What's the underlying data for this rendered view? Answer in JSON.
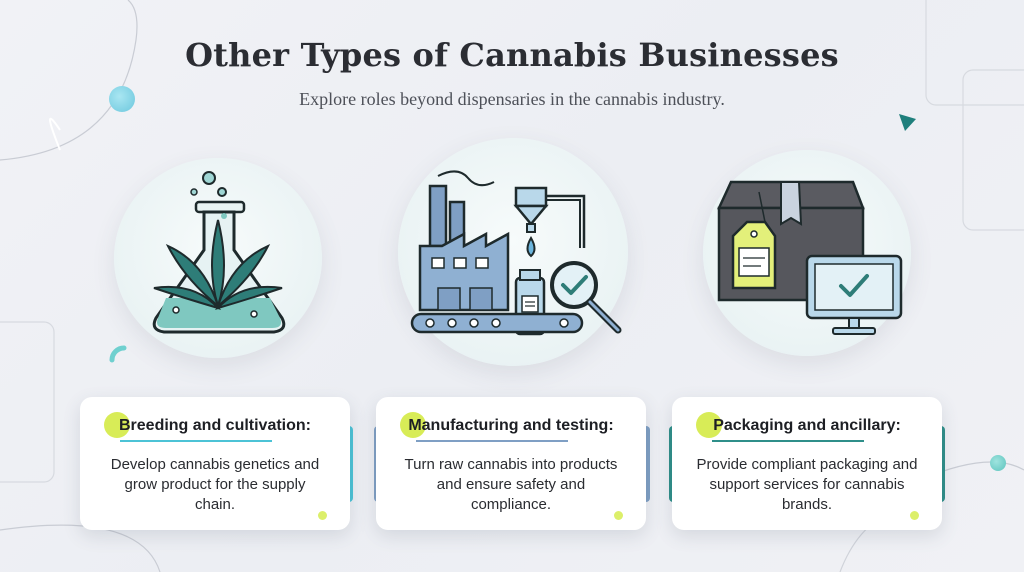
{
  "header": {
    "title": "Other Types of Cannabis Businesses",
    "subtitle": "Explore roles beyond dispensaries in the cannabis industry."
  },
  "colors": {
    "title": "#2b2d33",
    "accent_lime": "#d8ec57",
    "teal": "#2f8f8a",
    "cyan": "#4cc3d6",
    "steel_blue": "#7f9fc4",
    "box_gray": "#56575d"
  },
  "cards": [
    {
      "icon": "cannabis-flask-icon",
      "title": "Breeding and cultivation:",
      "description": "Develop cannabis genetics and grow product for the supply chain.",
      "accent": "#4cc3d6"
    },
    {
      "icon": "factory-testing-icon",
      "title": "Manufacturing and testing:",
      "description": "Turn raw cannabis into products and ensure safety and compliance.",
      "accent": "#7f9fc4"
    },
    {
      "icon": "packaging-box-icon",
      "title": "Packaging and ancillary:",
      "description": "Provide compliant packaging and support services for cannabis brands.",
      "accent": "#2f8f8a"
    }
  ]
}
